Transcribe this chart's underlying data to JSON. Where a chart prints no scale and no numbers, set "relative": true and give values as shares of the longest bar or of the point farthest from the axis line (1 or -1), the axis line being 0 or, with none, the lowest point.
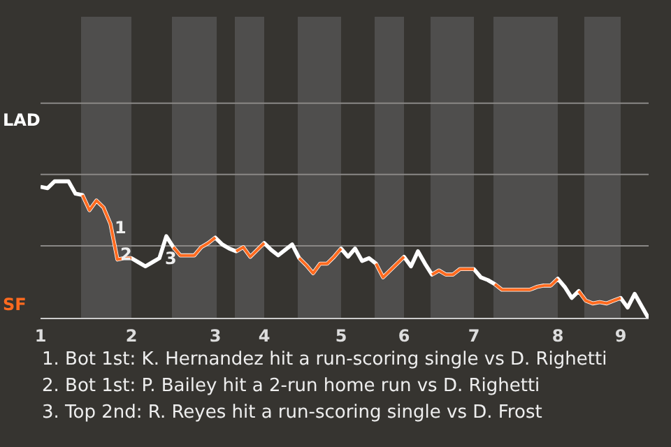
{
  "chart_data": {
    "type": "line",
    "relative": true,
    "categories": [
      "1",
      null,
      null,
      null,
      null,
      null,
      null,
      null,
      null,
      null,
      null,
      null,
      null,
      "2",
      null,
      null,
      null,
      null,
      null,
      null,
      null,
      null,
      null,
      null,
      null,
      "3",
      null,
      null,
      null,
      null,
      null,
      null,
      "4",
      null,
      null,
      null,
      null,
      null,
      null,
      null,
      null,
      null,
      null,
      "5",
      null,
      null,
      null,
      null,
      null,
      null,
      null,
      null,
      "6",
      null,
      null,
      null,
      null,
      null,
      null,
      null,
      null,
      null,
      "7",
      null,
      null,
      null,
      null,
      null,
      null,
      null,
      null,
      null,
      null,
      null,
      "8",
      null,
      null,
      null,
      null,
      null,
      null,
      null,
      null,
      "9",
      null,
      null,
      null,
      null
    ],
    "ref_lines": [
      {
        "axis": "y",
        "value": 0.53,
        "color": "#8a8886"
      },
      {
        "axis": "y",
        "value": 1.05,
        "color": "#8a8886"
      },
      {
        "axis": "y",
        "value": 1.57,
        "color": "#8a8886"
      }
    ],
    "series": [
      {
        "name": "LAD",
        "color": "#ffffff",
        "values": [
          0.96,
          0.95,
          1,
          1,
          1,
          0.91,
          0.9,
          0.79,
          0.86,
          0.81,
          0.69,
          0.43,
          0.44,
          0.44,
          0.41,
          0.38,
          0.41,
          0.44,
          0.6,
          0.52,
          0.46,
          0.46,
          0.46,
          0.52,
          0.55,
          0.59,
          0.54,
          0.51,
          0.49,
          0.52,
          0.45,
          0.5,
          0.55,
          0.5,
          0.46,
          0.5,
          0.54,
          0.44,
          0.39,
          0.33,
          0.4,
          0.4,
          0.45,
          0.51,
          0.45,
          0.51,
          0.42,
          0.44,
          0.4,
          0.3,
          0.35,
          0.4,
          0.45,
          0.38,
          0.49,
          0.4,
          0.32,
          0.35,
          0.32,
          0.32,
          0.36,
          0.36,
          0.36,
          0.3,
          0.28,
          0.25,
          0.21,
          0.21,
          0.21,
          0.21,
          0.21,
          0.23,
          0.24,
          0.24,
          0.29,
          0.23,
          0.15,
          0.2,
          0.13,
          0.11,
          0.12,
          0.11,
          0.13,
          0.15,
          0.08,
          0.18,
          0.09,
          0
        ]
      },
      {
        "name": "SF",
        "color": "#ff6a1f",
        "values": [
          null,
          null,
          null,
          null,
          null,
          null,
          0.9,
          0.79,
          0.86,
          0.81,
          0.69,
          0.43,
          0.44,
          0.44,
          null,
          null,
          null,
          null,
          null,
          0.52,
          0.46,
          0.46,
          0.46,
          0.52,
          0.55,
          0.59,
          null,
          null,
          0.49,
          0.52,
          0.45,
          0.5,
          0.55,
          null,
          null,
          null,
          null,
          0.44,
          0.39,
          0.33,
          0.4,
          0.4,
          0.45,
          0.51,
          null,
          null,
          null,
          null,
          0.4,
          0.3,
          0.35,
          0.4,
          0.45,
          null,
          null,
          null,
          0.32,
          0.35,
          0.32,
          0.32,
          0.36,
          0.36,
          0.36,
          null,
          null,
          0.25,
          0.21,
          0.21,
          0.21,
          0.21,
          0.21,
          0.23,
          0.24,
          0.24,
          0.29,
          null,
          null,
          0.2,
          0.13,
          0.11,
          0.12,
          0.11,
          0.13,
          0.15,
          null,
          null,
          null,
          null
        ]
      }
    ],
    "annotations": [
      "1",
      "2",
      "3",
      "1. Bot 1st: K. Hernandez hit a run-scoring single vs D. Righetti",
      "2. Bot 1st: P. Bailey hit a 2-run home run vs D. Righetti",
      "3. Top 2nd: R. Reyes hit a run-scoring single vs D. Frost"
    ]
  }
}
